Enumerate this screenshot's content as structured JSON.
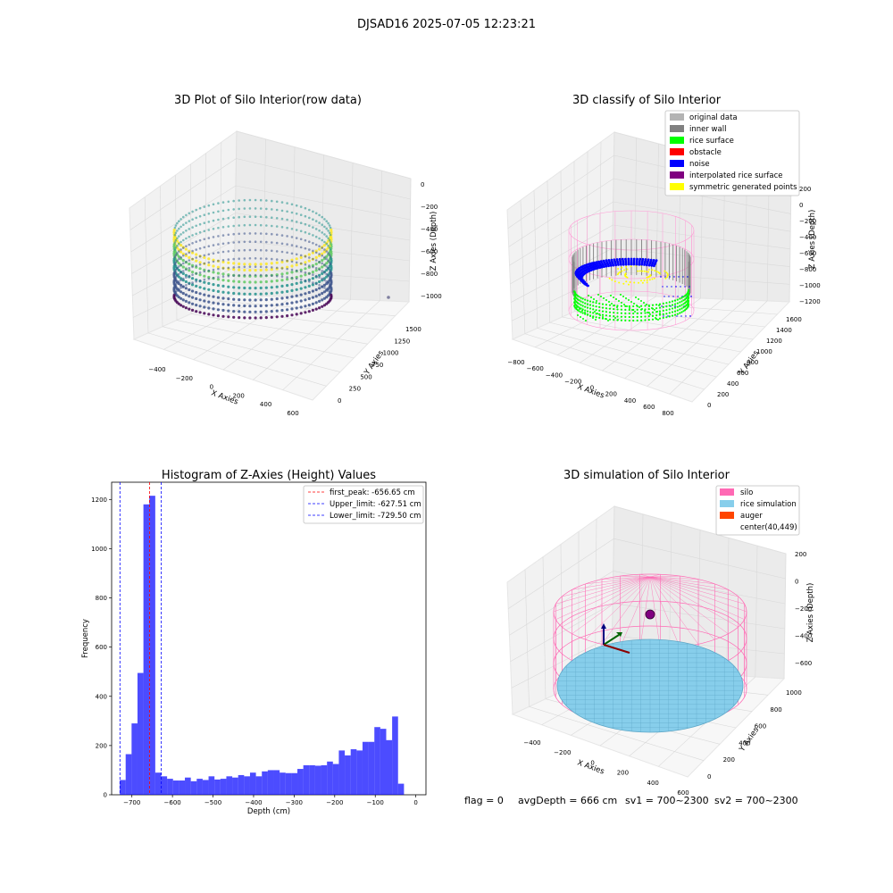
{
  "suptitle": "DJSAD16 2025-07-05 12:23:21",
  "status": {
    "flag": "flag = 0",
    "avg_depth": "avgDepth = 666 cm",
    "sv1": "sv1 = 700~2300",
    "sv2": "sv2 = 700~2300"
  },
  "chart_data": [
    {
      "type": "scatter",
      "title": "3D Plot of Silo Interior(row data)",
      "xlabel": "X Axies",
      "ylabel": "Y Axies",
      "zlabel": "Z Axies (Depth)",
      "xticks": [
        "−400",
        "−200",
        "0",
        "200",
        "400",
        "600"
      ],
      "yticks": [
        "0",
        "250",
        "500",
        "750",
        "1000",
        "1250",
        "1500"
      ],
      "zticks": [
        "0",
        "−200",
        "−400",
        "−600",
        "−800",
        "−1000"
      ],
      "xlim": [
        -500,
        650
      ],
      "ylim": [
        -50,
        1650
      ],
      "zlim": [
        -1100,
        50
      ],
      "colormap": "viridis"
    },
    {
      "type": "scatter",
      "title": "3D classify of Silo Interior",
      "xlabel": "X Axies",
      "ylabel": "Y Axies",
      "zlabel": "Z Axies (Depth)",
      "xticks": [
        "−800",
        "−600",
        "−400",
        "−200",
        "0",
        "200",
        "400",
        "600",
        "800"
      ],
      "yticks": [
        "0",
        "200",
        "400",
        "600",
        "800",
        "1000",
        "1200",
        "1400",
        "1600"
      ],
      "zticks": [
        "200",
        "0",
        "−200",
        "−400",
        "−600",
        "−800",
        "−1000",
        "−1200"
      ],
      "legend_position": "top-right",
      "legend": [
        {
          "label": "original data",
          "color": "#b3b3b3"
        },
        {
          "label": "inner wall",
          "color": "#808080"
        },
        {
          "label": "rice surface",
          "color": "#00ff00"
        },
        {
          "label": "obstacle",
          "color": "#ff0000"
        },
        {
          "label": "noise",
          "color": "#0000ff"
        },
        {
          "label": "interpolated rice surface",
          "color": "#800080"
        },
        {
          "label": "symmetric generated points",
          "color": "#ffff00"
        }
      ]
    },
    {
      "type": "bar",
      "title": "Histogram of Z-Axies (Height) Values",
      "xlabel": "Depth (cm)",
      "ylabel": "Frequency",
      "xlim": [
        -750,
        25
      ],
      "ylim": [
        0,
        1270
      ],
      "xticks": [
        -700,
        -600,
        -500,
        -400,
        -300,
        -200,
        -100,
        0
      ],
      "yticks": [
        0,
        200,
        400,
        600,
        800,
        1000,
        1200
      ],
      "bin_start": -730,
      "bin_width": 14.6,
      "values": [
        60,
        165,
        290,
        495,
        1180,
        1215,
        90,
        75,
        65,
        58,
        58,
        70,
        55,
        65,
        60,
        75,
        62,
        65,
        75,
        70,
        80,
        75,
        90,
        75,
        95,
        100,
        100,
        90,
        88,
        88,
        105,
        120,
        120,
        118,
        120,
        135,
        125,
        180,
        160,
        185,
        180,
        215,
        215,
        275,
        268,
        222,
        318,
        45
      ],
      "bar_color": "#0000ff",
      "lines": [
        {
          "label": "first_peak: -656.65 cm",
          "x": -656.65,
          "color": "#ff0000"
        },
        {
          "label": "Upper_limit: -627.51 cm",
          "x": -627.51,
          "color": "#0000ff"
        },
        {
          "label": "Lower_limit: -729.50 cm",
          "x": -729.5,
          "color": "#0000ff"
        }
      ],
      "legend_position": "top-right"
    },
    {
      "type": "scatter",
      "title": "3D simulation of Silo Interior",
      "xlabel": "X Axies",
      "ylabel": "Y Axies",
      "zlabel": "Z Axies (Depth)",
      "xticks": [
        "−400",
        "−200",
        "0",
        "200",
        "400",
        "600"
      ],
      "yticks": [
        "0",
        "200",
        "400",
        "600",
        "800",
        "1000"
      ],
      "zticks": [
        "200",
        "0",
        "−200",
        "−400",
        "−600"
      ],
      "legend_position": "top-right",
      "legend": [
        {
          "label": "silo",
          "color": "#ff69b4"
        },
        {
          "label": "rice simulation",
          "color": "#87ceeb"
        },
        {
          "label": "auger",
          "color": "#ff4500"
        },
        {
          "label": "center(40,449)",
          "color": ""
        }
      ]
    }
  ]
}
